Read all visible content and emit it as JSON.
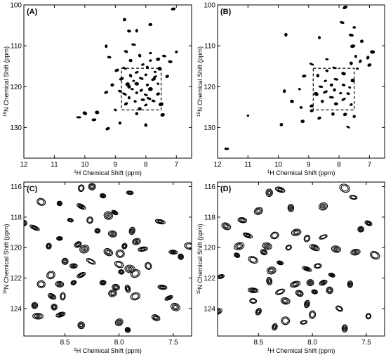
{
  "figure": {
    "panels": [
      {
        "id": "A",
        "label": "(A)",
        "xlabel_sup": "1",
        "xlabel_rest": "H Chemical Shift (ppm)",
        "ylabel_sup": "15",
        "ylabel_rest": "N Chemical Shift (ppm)"
      },
      {
        "id": "B",
        "label": "(B)",
        "xlabel_sup": "1",
        "xlabel_rest": "H Chemical Shift (ppm)",
        "ylabel_sup": "15",
        "ylabel_rest": "N Chemical Shift (ppm)"
      },
      {
        "id": "C",
        "label": "(C)",
        "xlabel_sup": "1",
        "xlabel_rest": "H Chemical Shift (ppm)",
        "ylabel_sup": "15",
        "ylabel_rest": "N Chemical Shift (ppm)"
      },
      {
        "id": "D",
        "label": "(D)",
        "xlabel_sup": "1",
        "xlabel_rest": "H Chemical Shift (ppm)",
        "ylabel_sup": "15",
        "ylabel_rest": "N Chemical Shift (ppm)"
      }
    ]
  },
  "chart_data": [
    {
      "type": "scatter",
      "panel": "A",
      "subtype": "2D NMR contour spectrum (peaks approximate)",
      "x_axis": {
        "range": [
          12,
          6.5
        ],
        "reversed": true,
        "ticks": [
          12,
          11,
          10,
          9,
          8,
          7
        ],
        "tick_labels": [
          "12",
          "11",
          "10",
          "9",
          "8",
          "7"
        ]
      },
      "y_axis": {
        "range": [
          100,
          137.5
        ],
        "reversed": true,
        "ticks": [
          100,
          110,
          120,
          130
        ],
        "tick_labels": [
          "100",
          "110",
          "120",
          "130"
        ]
      },
      "zoom_box": {
        "x": [
          8.8,
          7.5
        ],
        "y": [
          115.5,
          125.7
        ],
        "style": "dashed"
      },
      "peaks": [
        [
          7.1,
          101
        ],
        [
          8.7,
          103.6
        ],
        [
          7.85,
          104.8
        ],
        [
          8.3,
          106.3
        ],
        [
          8.55,
          106.4
        ],
        [
          9.3,
          110.1
        ],
        [
          8.4,
          109.7
        ],
        [
          7.4,
          112.5
        ],
        [
          7.6,
          113.3
        ],
        [
          7.0,
          111.5
        ],
        [
          7.85,
          111.8
        ],
        [
          8.2,
          112.4
        ],
        [
          8.65,
          111.4
        ],
        [
          7.2,
          113.9
        ],
        [
          7.85,
          113.6
        ],
        [
          8.1,
          114.6
        ],
        [
          8.5,
          113.6
        ],
        [
          9.2,
          112.8
        ],
        [
          7.55,
          115.6
        ],
        [
          8.7,
          115.5
        ],
        [
          8.95,
          116.0
        ],
        [
          8.3,
          116.5
        ],
        [
          7.7,
          116.4
        ],
        [
          8.0,
          117.1
        ],
        [
          8.5,
          117.3
        ],
        [
          7.3,
          117.5
        ],
        [
          8.8,
          118.1
        ],
        [
          8.15,
          118.0
        ],
        [
          7.75,
          118.2
        ],
        [
          9.1,
          119.6
        ],
        [
          8.6,
          119.4
        ],
        [
          8.3,
          119.3
        ],
        [
          7.95,
          119.6
        ],
        [
          7.6,
          119.3
        ],
        [
          8.45,
          120.6
        ],
        [
          8.15,
          120.9
        ],
        [
          7.85,
          120.6
        ],
        [
          9.3,
          121.4
        ],
        [
          8.7,
          121.8
        ],
        [
          8.3,
          121.5
        ],
        [
          8.0,
          122.0
        ],
        [
          7.6,
          121.8
        ],
        [
          8.55,
          122.7
        ],
        [
          7.9,
          122.9
        ],
        [
          8.35,
          123.6
        ],
        [
          7.75,
          123.5
        ],
        [
          8.65,
          124.2
        ],
        [
          8.0,
          124.5
        ],
        [
          7.5,
          124.3
        ],
        [
          8.2,
          125.4
        ],
        [
          9.0,
          125.7
        ],
        [
          9.6,
          126.3
        ],
        [
          10.0,
          126.5
        ],
        [
          10.2,
          127.5
        ],
        [
          9.7,
          128.1
        ],
        [
          8.85,
          128.9
        ],
        [
          8.0,
          129.4
        ],
        [
          9.25,
          130.3
        ],
        [
          8.3,
          126.6
        ],
        [
          7.45,
          126.9
        ],
        [
          8.55,
          120.0
        ],
        [
          7.7,
          117.6
        ],
        [
          8.85,
          121.1
        ],
        [
          7.95,
          115.3
        ],
        [
          8.4,
          118.6
        ],
        [
          8.1,
          123.2
        ]
      ]
    },
    {
      "type": "scatter",
      "panel": "B",
      "subtype": "2D NMR contour spectrum (peaks approximate)",
      "x_axis": {
        "range": [
          12,
          6.5
        ],
        "reversed": true,
        "ticks": [
          12,
          11,
          10,
          9,
          8,
          7
        ],
        "tick_labels": [
          "12",
          "11",
          "10",
          "9",
          "8",
          "7"
        ]
      },
      "y_axis": {
        "range": [
          100,
          137.5
        ],
        "reversed": true,
        "ticks": [
          100,
          110,
          120,
          130
        ],
        "tick_labels": [
          "100",
          "110",
          "120",
          "130"
        ]
      },
      "zoom_box": {
        "x": [
          8.85,
          7.5
        ],
        "y": [
          115.5,
          125.7
        ],
        "style": "dashed"
      },
      "peaks": [
        [
          7.8,
          100.6
        ],
        [
          7.9,
          104.3
        ],
        [
          7.5,
          105.5
        ],
        [
          9.75,
          107.3
        ],
        [
          8.65,
          108.0
        ],
        [
          7.6,
          107.4
        ],
        [
          7.25,
          108.9
        ],
        [
          7.55,
          110.1
        ],
        [
          6.9,
          111.5
        ],
        [
          7.05,
          112.9
        ],
        [
          7.45,
          112.6
        ],
        [
          7.3,
          113.8
        ],
        [
          7.6,
          114.3
        ],
        [
          7.0,
          114.7
        ],
        [
          7.4,
          115.6
        ],
        [
          8.15,
          115.4
        ],
        [
          8.9,
          114.5
        ],
        [
          8.4,
          116.1
        ],
        [
          7.85,
          116.8
        ],
        [
          8.7,
          117.3
        ],
        [
          8.1,
          118.2
        ],
        [
          7.55,
          118.5
        ],
        [
          8.45,
          118.6
        ],
        [
          7.85,
          119.6
        ],
        [
          8.25,
          119.6
        ],
        [
          8.6,
          120.0
        ],
        [
          7.65,
          120.2
        ],
        [
          8.15,
          120.8
        ],
        [
          8.45,
          121.3
        ],
        [
          7.95,
          121.6
        ],
        [
          8.75,
          121.8
        ],
        [
          7.7,
          121.7
        ],
        [
          8.25,
          122.6
        ],
        [
          7.85,
          123.1
        ],
        [
          8.55,
          123.6
        ],
        [
          8.1,
          124.2
        ],
        [
          7.6,
          124.4
        ],
        [
          8.9,
          124.7
        ],
        [
          9.3,
          120.6
        ],
        [
          9.8,
          121.1
        ],
        [
          9.55,
          123.6
        ],
        [
          9.25,
          125.1
        ],
        [
          8.9,
          125.9
        ],
        [
          8.2,
          126.7
        ],
        [
          7.8,
          126.8
        ],
        [
          8.65,
          127.7
        ],
        [
          7.5,
          127.3
        ],
        [
          11.0,
          127.1
        ],
        [
          9.2,
          128.5
        ],
        [
          9.9,
          129.3
        ],
        [
          7.7,
          129.9
        ],
        [
          11.7,
          135.2
        ],
        [
          8.4,
          113.3
        ],
        [
          9.15,
          117.4
        ]
      ]
    },
    {
      "type": "scatter",
      "panel": "C",
      "subtype": "2D NMR contour spectrum, expanded region (peaks approximate)",
      "x_axis": {
        "range": [
          8.88,
          7.33
        ],
        "reversed": true,
        "ticks": [
          8.5,
          8.0,
          7.5
        ],
        "tick_labels": [
          "8.5",
          "8.0",
          "7.5"
        ]
      },
      "y_axis": {
        "range": [
          115.7,
          125.8
        ],
        "reversed": true,
        "ticks": [
          116,
          118,
          120,
          122,
          124
        ],
        "tick_labels": [
          "116",
          "118",
          "120",
          "122",
          "124"
        ]
      },
      "peaks": [
        [
          8.35,
          116.1
        ],
        [
          8.25,
          116.0
        ],
        [
          8.15,
          116.6
        ],
        [
          7.9,
          116.4
        ],
        [
          8.72,
          117.0
        ],
        [
          8.35,
          117.3
        ],
        [
          8.55,
          117.1
        ],
        [
          8.04,
          117.7
        ],
        [
          8.45,
          118.2
        ],
        [
          8.27,
          118.2
        ],
        [
          7.62,
          118.3
        ],
        [
          8.78,
          118.7
        ],
        [
          8.2,
          118.9
        ],
        [
          8.06,
          119.1
        ],
        [
          7.88,
          118.9
        ],
        [
          8.55,
          119.4
        ],
        [
          8.38,
          119.8
        ],
        [
          8.65,
          119.9
        ],
        [
          7.95,
          119.9
        ],
        [
          7.84,
          119.6
        ],
        [
          8.32,
          120.1
        ],
        [
          8.1,
          120.3
        ],
        [
          7.99,
          120.4
        ],
        [
          7.78,
          120.1
        ],
        [
          7.5,
          120.3
        ],
        [
          7.43,
          120.6
        ],
        [
          8.5,
          120.9
        ],
        [
          8.42,
          121.2
        ],
        [
          8.26,
          120.9
        ],
        [
          8.0,
          121.1
        ],
        [
          7.9,
          121.4
        ],
        [
          7.73,
          121.2
        ],
        [
          8.63,
          121.8
        ],
        [
          8.35,
          121.8
        ],
        [
          7.98,
          121.6
        ],
        [
          7.85,
          121.7
        ],
        [
          8.72,
          122.4
        ],
        [
          8.55,
          122.4
        ],
        [
          8.42,
          122.3
        ],
        [
          8.15,
          122.3
        ],
        [
          8.03,
          122.6
        ],
        [
          7.92,
          122.7
        ],
        [
          7.6,
          122.6
        ],
        [
          8.62,
          123.2
        ],
        [
          8.52,
          123.2
        ],
        [
          8.06,
          123.0
        ],
        [
          7.85,
          123.2
        ],
        [
          7.54,
          123.3
        ],
        [
          8.78,
          123.8
        ],
        [
          8.6,
          123.9
        ],
        [
          7.48,
          123.9
        ],
        [
          8.75,
          124.5
        ],
        [
          8.54,
          124.4
        ],
        [
          8.0,
          124.9
        ],
        [
          8.35,
          125.1
        ],
        [
          7.92,
          125.4
        ],
        [
          8.88,
          118.4
        ],
        [
          7.35,
          119.9
        ],
        [
          8.1,
          117.9
        ],
        [
          7.66,
          124.6
        ]
      ]
    },
    {
      "type": "scatter",
      "panel": "D",
      "subtype": "2D NMR contour spectrum, expanded region (peaks approximate)",
      "x_axis": {
        "range": [
          8.88,
          7.33
        ],
        "reversed": true,
        "ticks": [
          8.5,
          8.0,
          7.5
        ],
        "tick_labels": [
          "8.5",
          "8.0",
          "7.5"
        ]
      },
      "y_axis": {
        "range": [
          115.7,
          125.8
        ],
        "reversed": true,
        "ticks": [
          116,
          118,
          120,
          122,
          124
        ],
        "tick_labels": [
          "116",
          "118",
          "120",
          "122",
          "124"
        ]
      },
      "peaks": [
        [
          8.4,
          116.4
        ],
        [
          8.3,
          116.2
        ],
        [
          7.7,
          116.1
        ],
        [
          7.62,
          116.7
        ],
        [
          8.2,
          117.4
        ],
        [
          7.9,
          117.3
        ],
        [
          8.5,
          117.6
        ],
        [
          8.65,
          118.2
        ],
        [
          7.48,
          118.4
        ],
        [
          7.55,
          118.8
        ],
        [
          8.8,
          118.6
        ],
        [
          8.6,
          119.2
        ],
        [
          8.15,
          119.0
        ],
        [
          8.35,
          119.2
        ],
        [
          8.05,
          119.4
        ],
        [
          7.9,
          119.3
        ],
        [
          8.68,
          119.9
        ],
        [
          8.42,
          119.9
        ],
        [
          8.22,
          120.0
        ],
        [
          7.98,
          120.0
        ],
        [
          7.78,
          120.1
        ],
        [
          7.6,
          120.3
        ],
        [
          7.42,
          120.5
        ],
        [
          8.7,
          120.5
        ],
        [
          8.55,
          120.8
        ],
        [
          8.3,
          121.0
        ],
        [
          7.95,
          121.2
        ],
        [
          8.38,
          121.5
        ],
        [
          8.05,
          121.4
        ],
        [
          8.85,
          121.9
        ],
        [
          8.4,
          122.2
        ],
        [
          8.16,
          122.4
        ],
        [
          8.02,
          122.3
        ],
        [
          7.9,
          122.3
        ],
        [
          7.65,
          122.4
        ],
        [
          8.55,
          122.8
        ],
        [
          8.3,
          122.9
        ],
        [
          8.12,
          123.0
        ],
        [
          7.98,
          122.9
        ],
        [
          7.84,
          122.8
        ],
        [
          8.55,
          123.5
        ],
        [
          8.25,
          123.5
        ],
        [
          8.05,
          123.7
        ],
        [
          8.5,
          124.2
        ],
        [
          7.75,
          124.0
        ],
        [
          8.25,
          124.8
        ],
        [
          8.08,
          124.9
        ],
        [
          8.0,
          124.4
        ],
        [
          8.88,
          124.2
        ],
        [
          7.48,
          124.5
        ],
        [
          8.35,
          125.2
        ],
        [
          7.7,
          125.3
        ],
        [
          8.45,
          120.3
        ],
        [
          7.82,
          121.8
        ]
      ]
    }
  ]
}
